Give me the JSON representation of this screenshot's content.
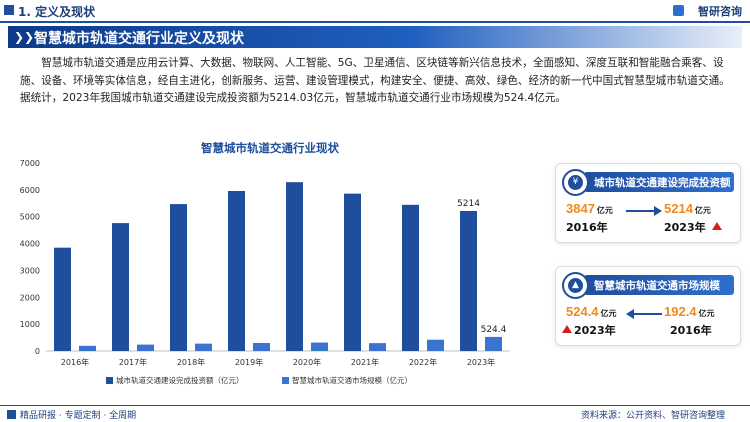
{
  "header": {
    "section_label": "1. 定义及现状",
    "brand": "智研咨询"
  },
  "title": "智慧城市轨道交通行业定义及现状",
  "paragraph": "智慧城市轨道交通是应用云计算、大数据、物联网、人工智能、5G、卫星通信、区块链等新兴信息技术，全面感知、深度互联和智能融合乘客、设施、设备、环境等实体信息，经自主进化，创新服务、运营、建设管理模式，构建安全、便捷、高效、绿色、经济的新一代中国式智慧型城市轨道交通。据统计，2023年我国城市轨道交通建设完成投资额为5214.03亿元，智慧城市轨道交通行业市场规模为524.4亿元。",
  "chart_data": {
    "type": "bar",
    "title": "智慧城市轨道交通行业现状",
    "categories": [
      "2016年",
      "2017年",
      "2018年",
      "2019年",
      "2020年",
      "2021年",
      "2022年",
      "2023年"
    ],
    "series": [
      {
        "name": "城市轨道交通建设完成投资额（亿元）",
        "color": "#1f4e9c",
        "values": [
          3847,
          4762,
          5470,
          5958,
          6286,
          5859,
          5443,
          5214
        ]
      },
      {
        "name": "智慧城市轨道交通市场规模（亿元）",
        "color": "#3a74d0",
        "values": [
          192.4,
          238,
          274,
          298,
          314,
          293,
          420,
          524.4
        ]
      }
    ],
    "ylim": [
      0,
      7000
    ],
    "yticks": [
      0,
      1000,
      2000,
      3000,
      4000,
      5000,
      6000,
      7000
    ],
    "data_labels": [
      {
        "series": 0,
        "index": 7,
        "text": "5214"
      },
      {
        "series": 1,
        "index": 7,
        "text": "524.4"
      }
    ],
    "grid": false,
    "legend_position": "bottom"
  },
  "card_investment": {
    "title": "城市轨道交通建设完成投资额",
    "from_value": "3847",
    "from_unit": "亿元",
    "from_year": "2016年",
    "to_value": "5214",
    "to_unit": "亿元",
    "to_year": "2023年"
  },
  "card_market": {
    "title": "智慧城市轨道交通市场规模",
    "new_value": "524.4",
    "new_unit": "亿元",
    "new_year": "2023年",
    "old_value": "192.4",
    "old_unit": "亿元",
    "old_year": "2016年"
  },
  "footer": {
    "left": "精品研报 · 专题定制 · 全周期",
    "source": "资料来源：公开资料、智研咨询整理"
  },
  "colors": {
    "primary": "#1f4e9c",
    "accent_orange": "#f08a1c",
    "up_red": "#d11f1f"
  }
}
